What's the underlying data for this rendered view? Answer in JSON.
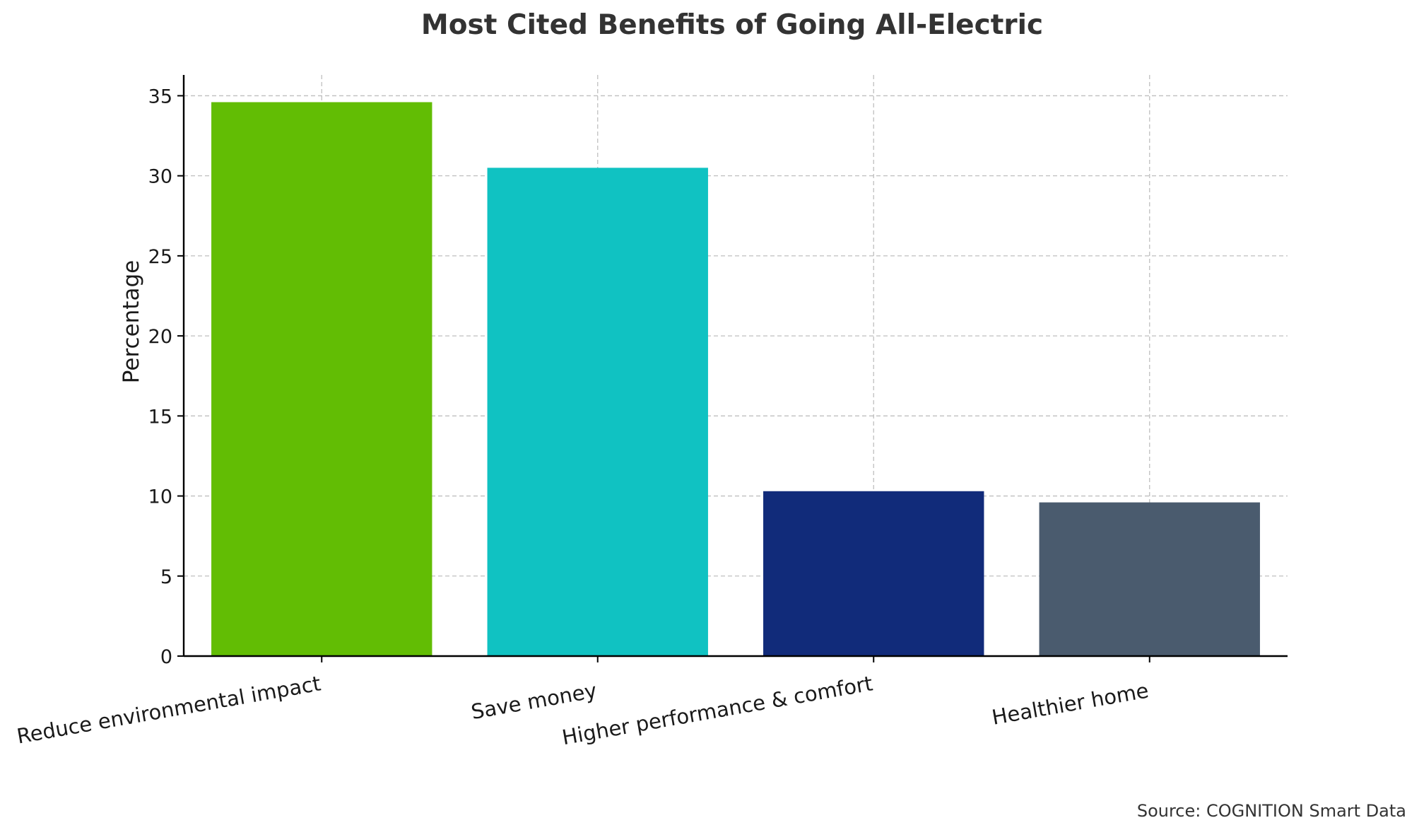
{
  "chart_data": {
    "type": "bar",
    "title": "Most Cited Benefits of Going All-Electric",
    "xlabel": "",
    "ylabel": "Percentage",
    "categories": [
      "Reduce environmental impact",
      "Save money",
      "Higher performance & comfort",
      "Healthier home"
    ],
    "values": [
      34.6,
      30.5,
      10.3,
      9.6
    ],
    "colors": [
      "#62bd04",
      "#10c2c2",
      "#112b7a",
      "#4a5b6e"
    ],
    "ylim": [
      0,
      36.3
    ],
    "yticks": [
      0,
      5,
      10,
      15,
      20,
      25,
      30,
      35
    ],
    "grid": true,
    "source": "Source: COGNITION Smart Data"
  }
}
